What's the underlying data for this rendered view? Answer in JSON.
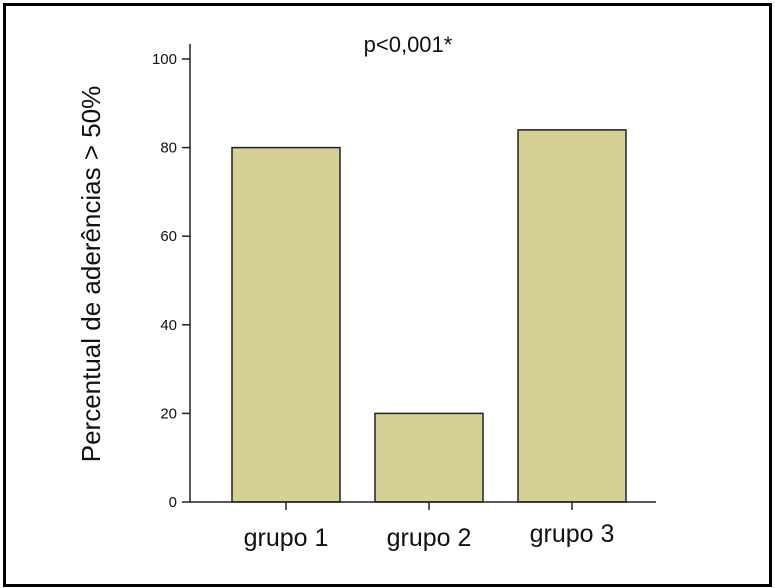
{
  "chart_data": {
    "type": "bar",
    "categories": [
      "grupo 1",
      "grupo 2",
      "grupo 3"
    ],
    "values": [
      80,
      20,
      84
    ],
    "ylabel": "Percentual de aderências > 50%",
    "yticks": [
      0,
      20,
      40,
      60,
      80,
      100
    ],
    "ylim": [
      0,
      100
    ],
    "annotation": "p<0,001*",
    "bar_color": "#d6cf96",
    "grid": false,
    "legend": "none"
  }
}
